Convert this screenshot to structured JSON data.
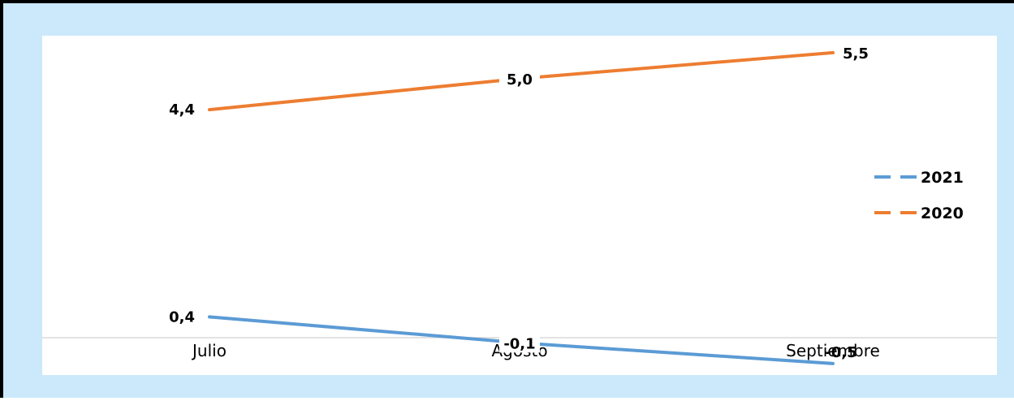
{
  "chart_data": {
    "type": "line",
    "categories": [
      "Julio",
      "Agosto",
      "Septiembre"
    ],
    "series": [
      {
        "name": "2021",
        "values": [
          0.4,
          -0.1,
          -0.5
        ],
        "labels": [
          "0,4",
          "-0,1",
          "-0,5"
        ],
        "color": "#5b9bd5"
      },
      {
        "name": "2020",
        "values": [
          4.4,
          5.0,
          5.5
        ],
        "labels": [
          "4,4",
          "5,0",
          "5,5"
        ],
        "color": "#ed7d31"
      }
    ],
    "title": "",
    "xlabel": "",
    "ylabel": "",
    "ylim": [
      -0.8,
      6.0
    ],
    "grid": false,
    "legend_position": "right",
    "background_color": "#cce9fb",
    "plot_background": "#ffffff"
  }
}
